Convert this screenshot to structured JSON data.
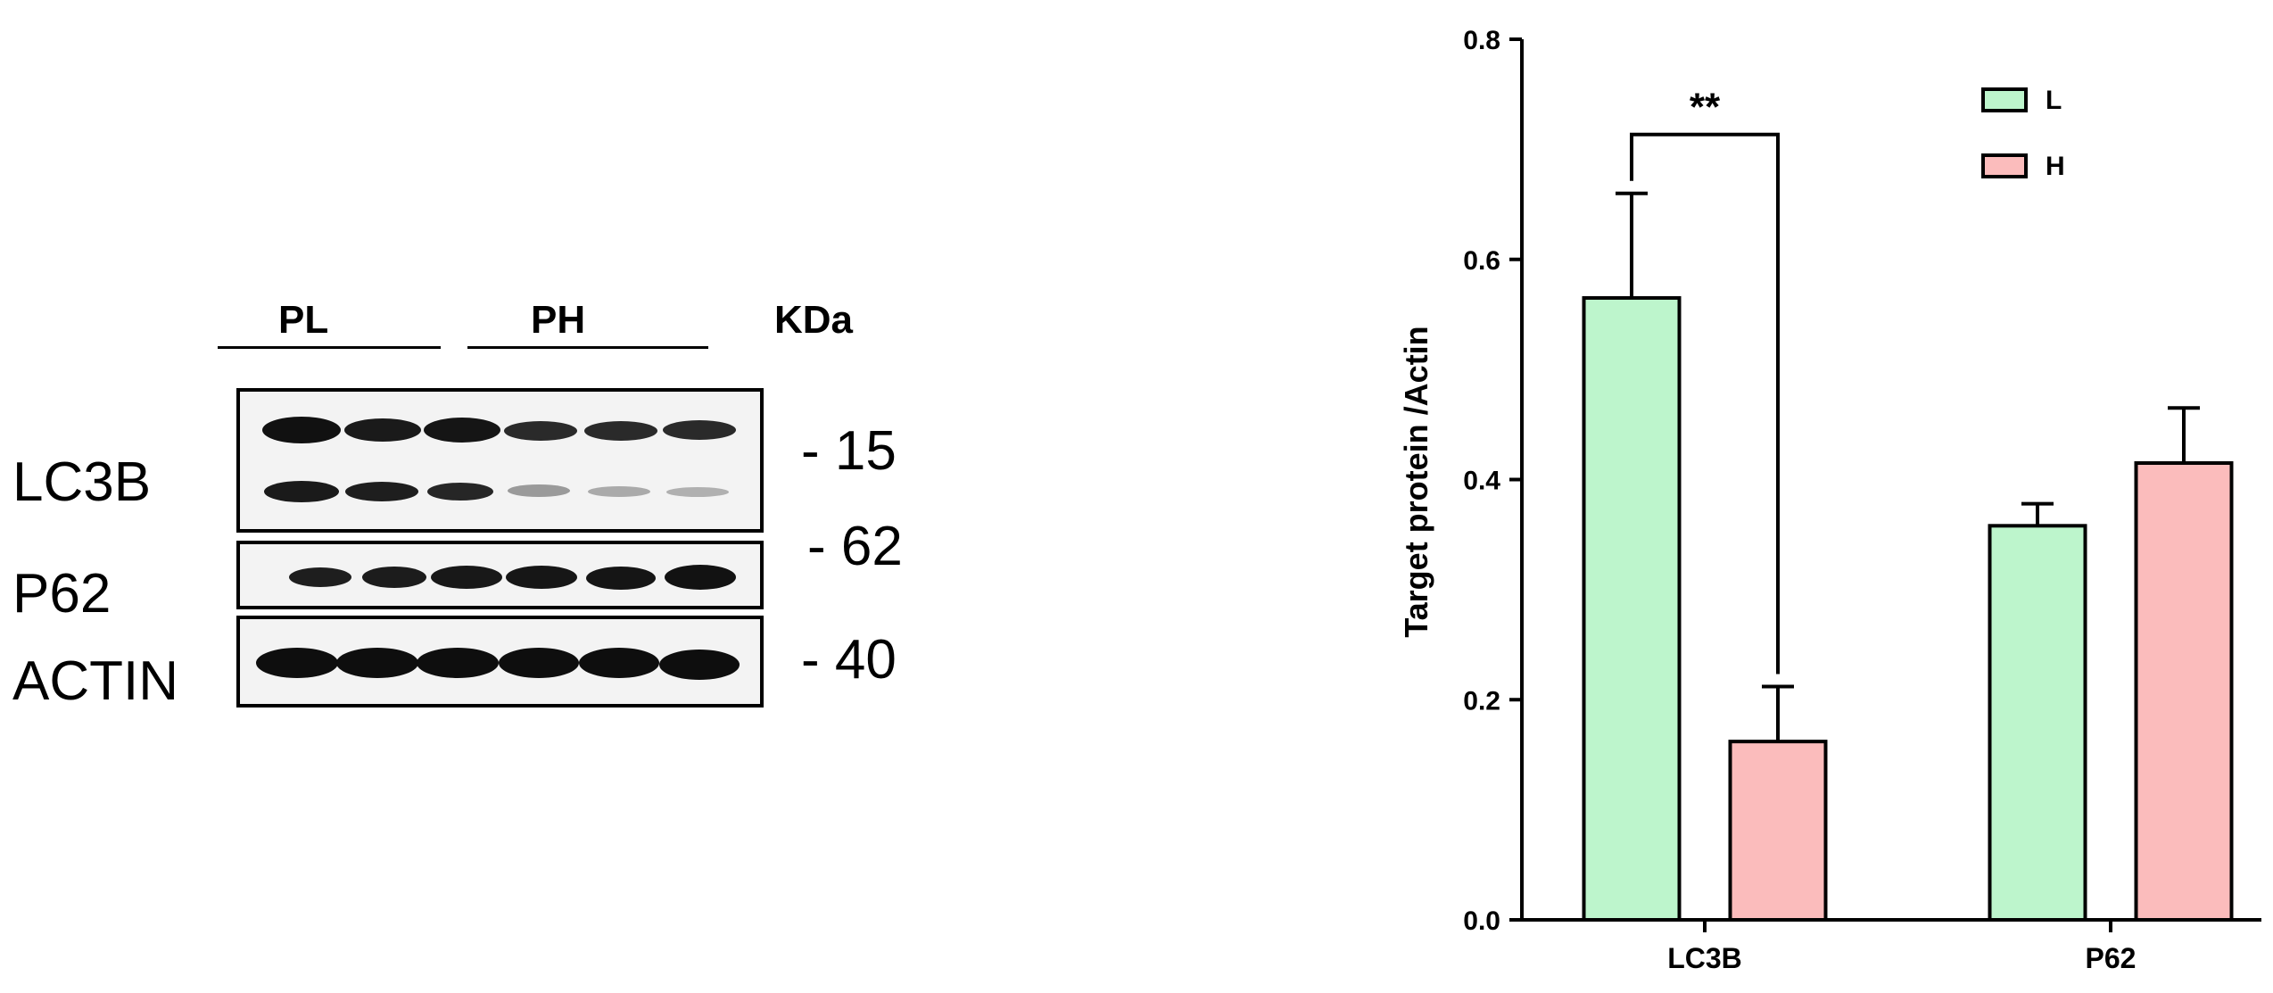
{
  "western_blot": {
    "groups": [
      "PL",
      "PH"
    ],
    "unit_label": "KDa",
    "proteins": [
      "LC3B",
      "P62",
      "ACTIN"
    ],
    "markers": [
      "- 15",
      "- 62",
      "- 40"
    ]
  },
  "chart_data": {
    "type": "bar",
    "categories": [
      "LC3B",
      "P62"
    ],
    "series": [
      {
        "name": "L",
        "color": "#bdf5cc",
        "values": [
          0.565,
          0.358
        ],
        "errors": [
          0.095,
          0.02
        ]
      },
      {
        "name": "H",
        "color": "#fbbcbc",
        "values": [
          0.162,
          0.415
        ],
        "errors": [
          0.05,
          0.05
        ]
      }
    ],
    "ylabel": "Target protein /Actin",
    "xlabel": "",
    "ylim": [
      0,
      0.8
    ],
    "yticks": [
      "0.0",
      "0.2",
      "0.4",
      "0.6",
      "0.8"
    ],
    "legend_position": "top-right",
    "significance": [
      {
        "category": "LC3B",
        "label": "**"
      }
    ]
  }
}
